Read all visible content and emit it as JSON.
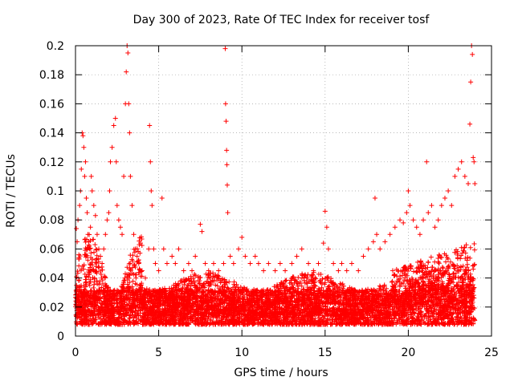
{
  "chart_data": {
    "type": "scatter",
    "title": "Day 300 of 2023, Rate Of TEC Index for receiver tosf",
    "xlabel": "GPS time / hours",
    "ylabel": "ROTI / TECUs",
    "xlim": [
      0,
      25
    ],
    "ylim": [
      0,
      0.2
    ],
    "xticks": [
      0,
      5,
      10,
      15,
      20,
      25
    ],
    "yticks": [
      0,
      0.02,
      0.04,
      0.06,
      0.08,
      0.1,
      0.12,
      0.14,
      0.16,
      0.18,
      0.2
    ],
    "grid": true,
    "marker": "+",
    "color": "#ff0000",
    "description": "Dense cloud of ROTI values; baseline about 0.01-0.04 TECU/min across the day, with enhanced activity near 0-4 h and 19-24 h.",
    "series": [
      {
        "name": "",
        "points": [
          [
            0.05,
            0.074
          ],
          [
            0.1,
            0.065
          ],
          [
            0.15,
            0.08
          ],
          [
            0.2,
            0.056
          ],
          [
            0.25,
            0.09
          ],
          [
            0.3,
            0.1
          ],
          [
            0.35,
            0.115
          ],
          [
            0.4,
            0.14
          ],
          [
            0.45,
            0.138
          ],
          [
            0.5,
            0.13
          ],
          [
            0.55,
            0.11
          ],
          [
            0.6,
            0.12
          ],
          [
            0.65,
            0.095
          ],
          [
            0.7,
            0.085
          ],
          [
            0.75,
            0.07
          ],
          [
            0.8,
            0.065
          ],
          [
            0.85,
            0.06
          ],
          [
            0.9,
            0.075
          ],
          [
            0.95,
            0.11
          ],
          [
            1.0,
            0.1
          ],
          [
            1.1,
            0.09
          ],
          [
            1.2,
            0.083
          ],
          [
            1.3,
            0.07
          ],
          [
            1.4,
            0.06
          ],
          [
            1.5,
            0.055
          ],
          [
            1.6,
            0.05
          ],
          [
            1.7,
            0.06
          ],
          [
            1.8,
            0.07
          ],
          [
            1.9,
            0.08
          ],
          [
            2.0,
            0.085
          ],
          [
            2.05,
            0.1
          ],
          [
            2.1,
            0.12
          ],
          [
            2.2,
            0.13
          ],
          [
            2.3,
            0.145
          ],
          [
            2.4,
            0.15
          ],
          [
            2.45,
            0.12
          ],
          [
            2.5,
            0.09
          ],
          [
            2.6,
            0.08
          ],
          [
            2.7,
            0.075
          ],
          [
            2.8,
            0.07
          ],
          [
            2.9,
            0.11
          ],
          [
            3.0,
            0.16
          ],
          [
            3.05,
            0.182
          ],
          [
            3.1,
            0.2
          ],
          [
            3.15,
            0.195
          ],
          [
            3.2,
            0.16
          ],
          [
            3.25,
            0.14
          ],
          [
            3.3,
            0.11
          ],
          [
            3.4,
            0.09
          ],
          [
            3.5,
            0.07
          ],
          [
            3.6,
            0.06
          ],
          [
            3.7,
            0.055
          ],
          [
            3.8,
            0.05
          ],
          [
            4.0,
            0.045
          ],
          [
            4.2,
            0.04
          ],
          [
            4.4,
            0.06
          ],
          [
            4.45,
            0.145
          ],
          [
            4.5,
            0.12
          ],
          [
            4.55,
            0.1
          ],
          [
            4.6,
            0.09
          ],
          [
            4.7,
            0.06
          ],
          [
            4.8,
            0.05
          ],
          [
            5.0,
            0.045
          ],
          [
            5.2,
            0.095
          ],
          [
            5.3,
            0.06
          ],
          [
            5.5,
            0.05
          ],
          [
            5.8,
            0.055
          ],
          [
            6.0,
            0.05
          ],
          [
            6.2,
            0.06
          ],
          [
            6.5,
            0.045
          ],
          [
            6.8,
            0.05
          ],
          [
            7.0,
            0.045
          ],
          [
            7.2,
            0.055
          ],
          [
            7.5,
            0.077
          ],
          [
            7.6,
            0.072
          ],
          [
            7.8,
            0.05
          ],
          [
            8.0,
            0.045
          ],
          [
            8.3,
            0.05
          ],
          [
            8.6,
            0.045
          ],
          [
            8.9,
            0.05
          ],
          [
            9.0,
            0.198
          ],
          [
            9.02,
            0.16
          ],
          [
            9.05,
            0.148
          ],
          [
            9.08,
            0.128
          ],
          [
            9.1,
            0.118
          ],
          [
            9.12,
            0.104
          ],
          [
            9.15,
            0.085
          ],
          [
            9.3,
            0.055
          ],
          [
            9.5,
            0.05
          ],
          [
            9.8,
            0.06
          ],
          [
            10.0,
            0.068
          ],
          [
            10.2,
            0.055
          ],
          [
            10.5,
            0.05
          ],
          [
            10.8,
            0.055
          ],
          [
            11.0,
            0.05
          ],
          [
            11.3,
            0.045
          ],
          [
            11.6,
            0.05
          ],
          [
            12.0,
            0.045
          ],
          [
            12.3,
            0.05
          ],
          [
            12.6,
            0.045
          ],
          [
            13.0,
            0.05
          ],
          [
            13.3,
            0.055
          ],
          [
            13.6,
            0.06
          ],
          [
            14.0,
            0.05
          ],
          [
            14.3,
            0.045
          ],
          [
            14.6,
            0.05
          ],
          [
            14.9,
            0.064
          ],
          [
            15.0,
            0.086
          ],
          [
            15.1,
            0.075
          ],
          [
            15.2,
            0.06
          ],
          [
            15.5,
            0.05
          ],
          [
            15.8,
            0.045
          ],
          [
            16.0,
            0.05
          ],
          [
            16.3,
            0.045
          ],
          [
            16.6,
            0.05
          ],
          [
            17.0,
            0.045
          ],
          [
            17.3,
            0.055
          ],
          [
            17.6,
            0.06
          ],
          [
            17.9,
            0.065
          ],
          [
            18.0,
            0.095
          ],
          [
            18.1,
            0.07
          ],
          [
            18.3,
            0.06
          ],
          [
            18.6,
            0.065
          ],
          [
            18.9,
            0.07
          ],
          [
            19.2,
            0.075
          ],
          [
            19.5,
            0.08
          ],
          [
            19.7,
            0.078
          ],
          [
            19.9,
            0.085
          ],
          [
            20.0,
            0.1
          ],
          [
            20.1,
            0.09
          ],
          [
            20.3,
            0.08
          ],
          [
            20.5,
            0.075
          ],
          [
            20.7,
            0.07
          ],
          [
            20.9,
            0.08
          ],
          [
            21.1,
            0.12
          ],
          [
            21.2,
            0.085
          ],
          [
            21.4,
            0.09
          ],
          [
            21.6,
            0.075
          ],
          [
            21.8,
            0.08
          ],
          [
            22.0,
            0.09
          ],
          [
            22.2,
            0.095
          ],
          [
            22.4,
            0.1
          ],
          [
            22.6,
            0.09
          ],
          [
            22.8,
            0.11
          ],
          [
            23.0,
            0.115
          ],
          [
            23.2,
            0.12
          ],
          [
            23.4,
            0.11
          ],
          [
            23.6,
            0.105
          ],
          [
            23.7,
            0.146
          ],
          [
            23.75,
            0.175
          ],
          [
            23.8,
            0.2
          ],
          [
            23.85,
            0.194
          ],
          [
            23.9,
            0.123
          ],
          [
            23.95,
            0.12
          ],
          [
            24.0,
            0.105
          ]
        ]
      }
    ]
  }
}
